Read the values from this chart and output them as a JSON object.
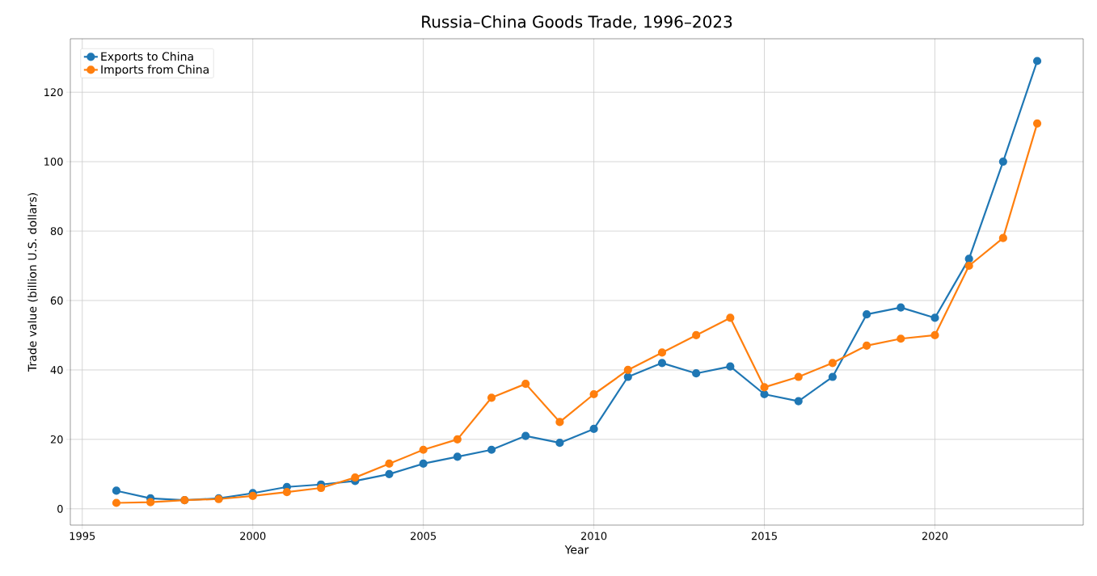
{
  "chart_data": {
    "type": "line",
    "title": "Russia–China Goods Trade, 1996–2023",
    "xlabel": "Year",
    "ylabel": "Trade value (billion U.S. dollars)",
    "x": [
      1996,
      1997,
      1998,
      1999,
      2000,
      2001,
      2002,
      2003,
      2004,
      2005,
      2006,
      2007,
      2008,
      2009,
      2010,
      2011,
      2012,
      2013,
      2014,
      2015,
      2016,
      2017,
      2018,
      2019,
      2020,
      2021,
      2022,
      2023
    ],
    "series": [
      {
        "name": "Exports to China",
        "color": "#1f77b4",
        "values": [
          5.2,
          3,
          2.5,
          3,
          4.5,
          6.3,
          7,
          8,
          10,
          13,
          15,
          17,
          21,
          19,
          23,
          38,
          42,
          39,
          41,
          33,
          31,
          38,
          56,
          58,
          55,
          72,
          100,
          129
        ]
      },
      {
        "name": "Imports from China",
        "color": "#ff7f0e",
        "values": [
          1.7,
          1.9,
          2.5,
          2.8,
          3.7,
          4.8,
          6,
          9,
          13,
          17,
          20,
          32,
          36,
          25,
          33,
          40,
          45,
          50,
          55,
          35,
          38,
          42,
          47,
          49,
          50,
          70,
          78,
          111
        ]
      }
    ],
    "xlim": [
      1994.65,
      2024.35
    ],
    "ylim": [
      -4.7,
      135.4
    ],
    "xticks": [
      1995,
      2000,
      2005,
      2010,
      2015,
      2020
    ],
    "yticks": [
      0,
      20,
      40,
      60,
      80,
      100,
      120
    ],
    "grid": true,
    "legend": "top left",
    "marker": "circle",
    "line_style": "solid"
  }
}
